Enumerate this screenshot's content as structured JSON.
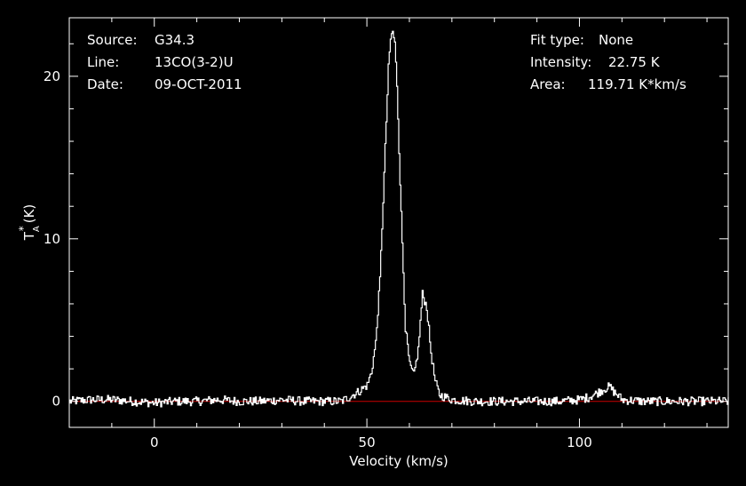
{
  "colors": {
    "background": "#000000",
    "foreground": "#ffffff",
    "baseline": "#cc0000",
    "spectrum": "#ffffff"
  },
  "info": {
    "source_label": "Source:",
    "source_value": "G34.3",
    "line_label": "Line:",
    "line_value": "13CO(3-2)U",
    "date_label": "Date:",
    "date_value": "09-OCT-2011",
    "fit_label": "Fit type:",
    "fit_value": "None",
    "intensity_label": "Intensity:",
    "intensity_value": "22.75 K",
    "area_label": "Area:",
    "area_value": "119.71 K*km/s"
  },
  "chart_data": {
    "type": "line",
    "xlabel": "Velocity (km/s)",
    "ylabel_main": "T",
    "ylabel_sub": "A",
    "ylabel_sup": "*",
    "ylabel_unit": "(K)",
    "xlim": [
      -20,
      135
    ],
    "ylim": [
      -1.6,
      23.6
    ],
    "x_ticks": [
      0,
      50,
      100
    ],
    "y_ticks": [
      0,
      10,
      20
    ],
    "baseline": 0,
    "series": [
      {
        "x": [
          -20,
          -15,
          -10,
          -5,
          0,
          5,
          10,
          15,
          20,
          25,
          30,
          35,
          40,
          44,
          46,
          48,
          50,
          51,
          52,
          53,
          54,
          55,
          55.5,
          56,
          56.5,
          57,
          58,
          59,
          60,
          61,
          62,
          63,
          64,
          65,
          66,
          67,
          68,
          70,
          75,
          80,
          85,
          90,
          95,
          100,
          102,
          104,
          106,
          107,
          108,
          110,
          115,
          120,
          125,
          130,
          135
        ],
        "y": [
          0,
          0.1,
          0.1,
          0,
          -0.1,
          0,
          0,
          0.1,
          0,
          0,
          0.1,
          0,
          0,
          0,
          0.3,
          0.6,
          1.0,
          1.8,
          3.6,
          7.5,
          14.0,
          20.5,
          22.3,
          22.75,
          22.0,
          19.5,
          11.5,
          4.5,
          2.2,
          1.6,
          3.2,
          6.6,
          5.8,
          3.0,
          1.2,
          0.4,
          0.3,
          0.1,
          0,
          0,
          0,
          0,
          0,
          0.1,
          0.25,
          0.5,
          0.8,
          0.9,
          0.6,
          0.1,
          0,
          0,
          0,
          0,
          0
        ]
      }
    ]
  }
}
